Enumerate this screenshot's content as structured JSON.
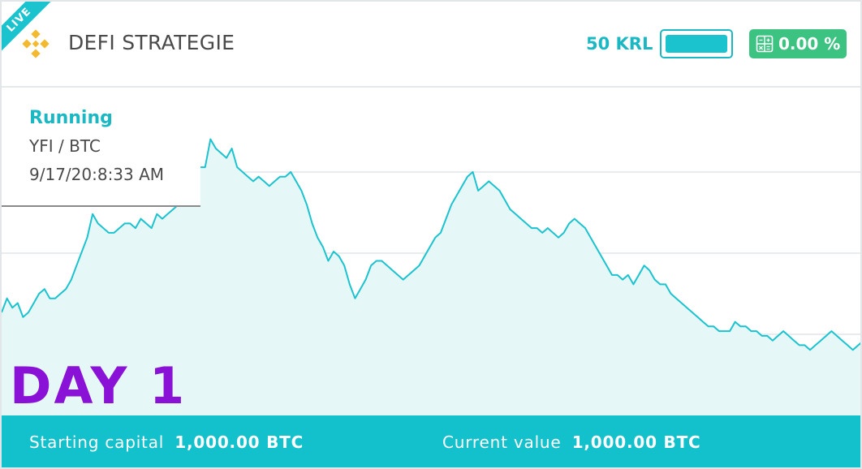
{
  "ribbon": {
    "label": "LIVE"
  },
  "header": {
    "title": "DEFI STRATEGIE",
    "logo_icon": "binance-diamond-icon",
    "budget_label": "50 KRL",
    "budget_fill_fraction": 1.0,
    "profit_icon": "calculator-icon",
    "profit_value": "0.00 %"
  },
  "info": {
    "status": "Running",
    "pair": "YFI / BTC",
    "date": "9/17/20:8:33 AM"
  },
  "day_label": "DAY 1",
  "footer": {
    "starting_capital_label": "Starting capital",
    "starting_capital_value": "1,000.00 BTC",
    "current_value_label": "Current value",
    "current_value_value": "1,000.00 BTC"
  },
  "colors": {
    "accent": "#1bc3cf",
    "profit_green": "#3cc381",
    "day_purple": "#8a12d6",
    "binance_gold": "#f3ba2f",
    "area_fill": "#e6f7f8"
  },
  "chart_data": {
    "type": "area",
    "title": "",
    "xlabel": "",
    "ylabel": "",
    "grid": true,
    "legend": "none",
    "series": [
      {
        "values": [
          52,
          55,
          53,
          54,
          51,
          52,
          54,
          56,
          57,
          55,
          55,
          56,
          57,
          59,
          62,
          65,
          68,
          73,
          71,
          70,
          69,
          69,
          70,
          71,
          71,
          70,
          72,
          71,
          70,
          73,
          72,
          73,
          74,
          75,
          77,
          79,
          82,
          83,
          83,
          89,
          87,
          86,
          85,
          87,
          83,
          82,
          81,
          80,
          81,
          80,
          79,
          80,
          81,
          81,
          82,
          80,
          78,
          75,
          71,
          68,
          66,
          63,
          65,
          64,
          62,
          58,
          55,
          57,
          59,
          62,
          63,
          63,
          62,
          61,
          60,
          59,
          60,
          61,
          62,
          64,
          66,
          68,
          69,
          72,
          75,
          77,
          79,
          81,
          82,
          78,
          79,
          80,
          79,
          78,
          76,
          74,
          73,
          72,
          71,
          70,
          70,
          69,
          70,
          69,
          68,
          69,
          71,
          72,
          71,
          70,
          68,
          66,
          64,
          62,
          60,
          60,
          59,
          60,
          58,
          60,
          62,
          61,
          59,
          58,
          58,
          56,
          55,
          54,
          53,
          52,
          51,
          50,
          49,
          49,
          48,
          48,
          48,
          50,
          49,
          49,
          48,
          48,
          47,
          47,
          46,
          47,
          48,
          47,
          46,
          45,
          45,
          44,
          45,
          46,
          47,
          48,
          47,
          46,
          45,
          44,
          45,
          46
        ]
      }
    ],
    "ylim": [
      30,
      100
    ]
  }
}
